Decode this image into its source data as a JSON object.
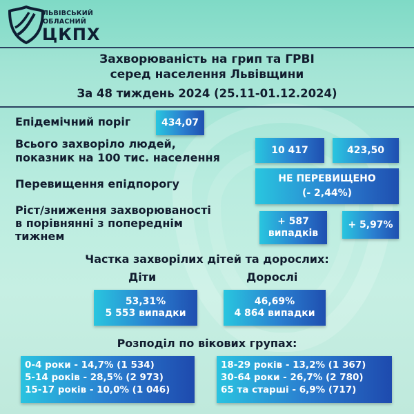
{
  "header": {
    "org_line1": "ЛЬВІВСЬКИЙ",
    "org_line2": "ОБЛАСНИЙ",
    "org_abbr": "ЦКПХ"
  },
  "title": {
    "line1": "Захворюваність на грип та ГРВІ",
    "line2": "серед населення Львівщини",
    "period": "За 48 тиждень 2024 (25.11-01.12.2024)"
  },
  "stats": {
    "threshold_label": "Епідемічний поріг",
    "threshold_value": "434,07",
    "total_label_1": "Всього захворіло людей,",
    "total_label_2": "показник на 100 тис. населення",
    "total_cases": "10 417",
    "total_rate": "423,50",
    "exceed_label": "Перевищення епідпорогу",
    "exceed_status": "НЕ ПЕРЕВИЩЕНО",
    "exceed_percent": "(- 2,44%)",
    "change_label_1": "Ріст/зниження захворюваності",
    "change_label_2": "в порівнянні з попереднім",
    "change_label_3": "тижнем",
    "change_cases_1": "+ 587",
    "change_cases_2": "випадків",
    "change_percent": "+ 5,97%"
  },
  "share": {
    "heading": "Частка захворілих дітей та дорослих:",
    "children_label": "Діти",
    "adults_label": "Дорослі",
    "children_percent": "53,31%",
    "children_cases": "5 553 випадки",
    "adults_percent": "46,69%",
    "adults_cases": "4 864 випадки"
  },
  "ages": {
    "heading": "Розподіл по вікових групах:",
    "left": [
      "0-4 роки - 14,7% (1 534)",
      "5-14 років - 28,5% (2 973)",
      "15-17 років - 10,0% (1 046)"
    ],
    "right": [
      "18-29 років - 13,2% (1 367)",
      "30-64 роки - 26,7% (2 780)",
      "65 та старші - 6,9% (717)"
    ]
  }
}
